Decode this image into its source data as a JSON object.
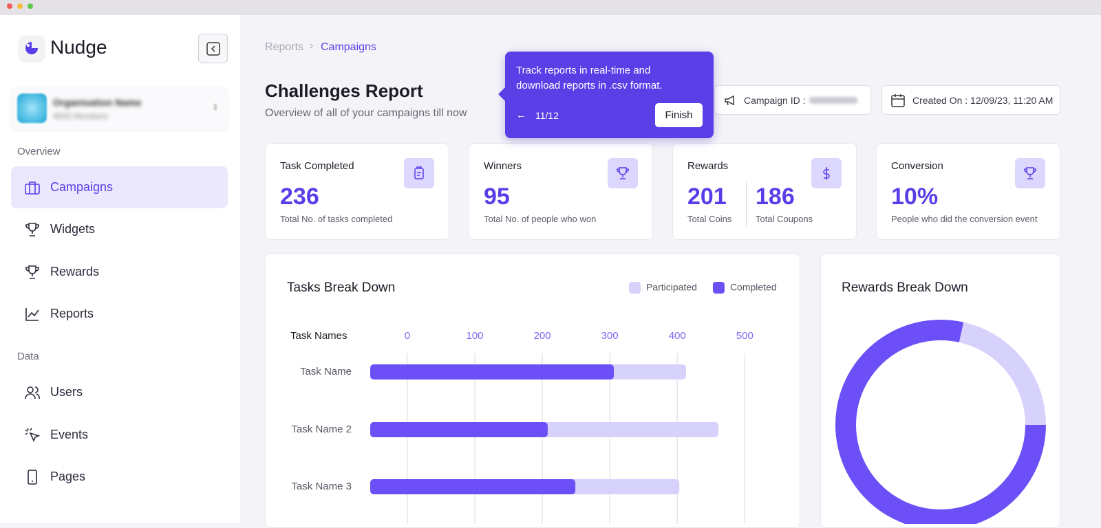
{
  "sidebar": {
    "brand": "Nudge",
    "organisation": {
      "name": "Organisation Name",
      "members": "4500 Members"
    },
    "overview": {
      "heading": "Overview",
      "items": [
        "Campaigns",
        "Widgets",
        "Rewards",
        "Reports"
      ]
    },
    "data": {
      "heading": "Data",
      "items": [
        "Users",
        "Events",
        "Pages"
      ]
    }
  },
  "breadcrumb": [
    "Reports",
    "Campaigns"
  ],
  "header": {
    "title": "Challenges Report",
    "subtitle": "Overview of all of your campaigns till now",
    "campaign_id_label": "Campaign ID :",
    "created_on": "Created On : 12/09/23, 11:20 AM"
  },
  "tour": {
    "text": "Track reports in real-time and download reports in .csv format.",
    "step": "11/12",
    "button": "Finish"
  },
  "stats": [
    {
      "title": "Task Completed",
      "value": 236,
      "caption": "Total No. of tasks completed"
    },
    {
      "title": "Winners",
      "value": 95,
      "caption": "Total No. of people who won"
    },
    {
      "title": "Rewards",
      "value": 201,
      "caption": "Total Coins",
      "value2": 186,
      "caption2": "Total Coupons"
    },
    {
      "title": "Conversion",
      "value": "10%",
      "caption": "People who did the conversion event"
    }
  ],
  "chart_data": [
    {
      "type": "hbar",
      "title": "Tasks Break Down",
      "y_label": "Task Names",
      "categories": [
        "Task Name",
        "Task Name 2",
        "Task Name 3"
      ],
      "series": [
        {
          "name": "Participated",
          "color": "#d6d2fb",
          "values": [
            413,
            461,
            403
          ]
        },
        {
          "name": "Completed",
          "color": "#6c4ff6",
          "values": [
            306,
            208,
            249
          ]
        }
      ],
      "xlim": [
        -55,
        515
      ],
      "xticks": [
        0,
        100,
        200,
        300,
        400,
        500
      ],
      "grid": true
    },
    {
      "type": "donut",
      "title": "Rewards Break Down",
      "values": [
        78.5,
        21.5
      ],
      "colors": [
        "#6c4ff6",
        "#d6d2fb"
      ]
    }
  ]
}
